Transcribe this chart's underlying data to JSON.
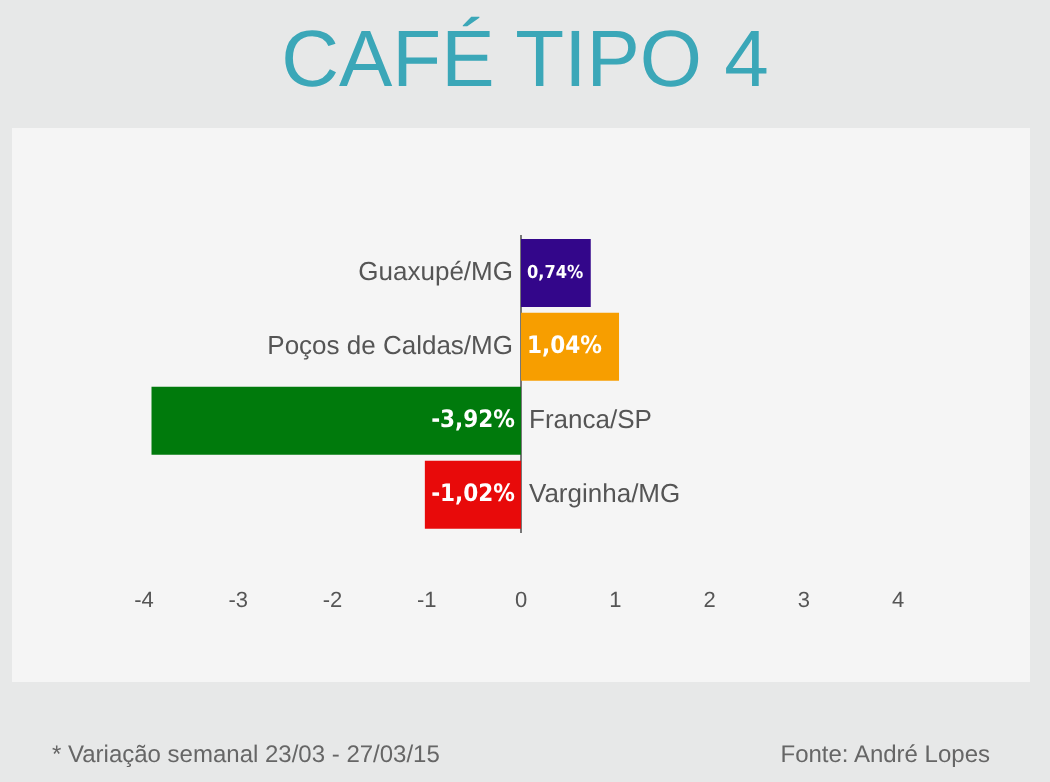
{
  "chart_data": {
    "type": "bar",
    "orientation": "horizontal",
    "title": "CAFÉ TIPO 4",
    "categories": [
      "Guaxupé/MG",
      "Poços de Caldas/MG",
      "Franca/SP",
      "Varginha/MG"
    ],
    "values": [
      0.74,
      1.04,
      -3.92,
      -1.02
    ],
    "colors": [
      "#33068a",
      "#f79e00",
      "#007a0c",
      "#e80a0a"
    ],
    "value_labels": [
      "0,74%",
      "1,04%",
      "-3,92%",
      "-1,02%"
    ],
    "xlim": [
      -5.4,
      5.4
    ],
    "xticks": [
      -4,
      -3,
      -2,
      -1,
      0,
      1,
      2,
      3,
      4
    ],
    "grid": false,
    "legend": false,
    "annotations": [
      "* Variação semanal 23/03 - 27/03/15",
      "Fonte: André Lopes"
    ]
  }
}
